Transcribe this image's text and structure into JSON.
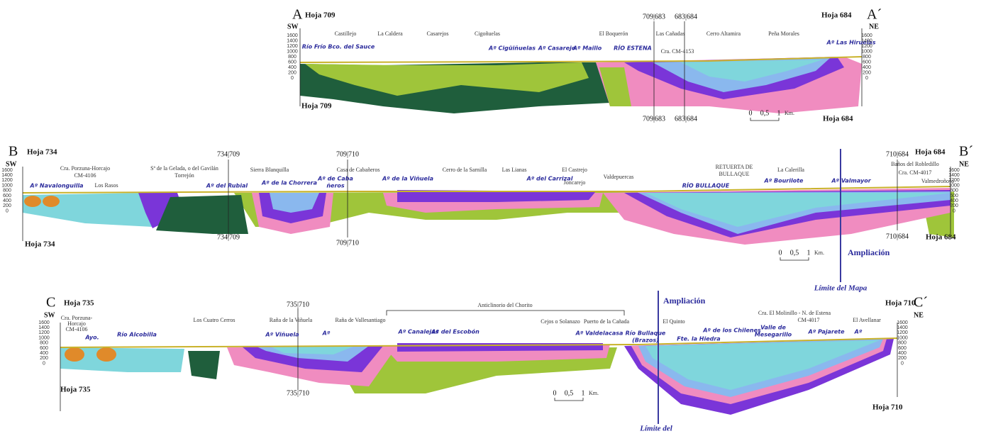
{
  "sections": [
    {
      "start": "A",
      "end": "A´",
      "start_dir": "SW",
      "end_dir": "NE",
      "top_left": "Hoja 709",
      "top_right": "Hoja 684",
      "bottom_left": "Hoja 709",
      "bottom_right": "Hoja 684",
      "places": [
        "Castillejo",
        "La Caldera",
        "Casarejos",
        "Cigoñuelas",
        "El Boquerón",
        "Las Cañadas",
        "Cra. CM-4153",
        "Cerro Altamira",
        "Peña Morales"
      ],
      "rivers": [
        "Río Frío Bco. del Sauce",
        "Aº Cigüiñuelas",
        "Aº Casarejo",
        "Aº Maillo",
        "RÍO ESTENA",
        "Aº Las Hiruelas"
      ],
      "sheet_marks": [
        "709|683",
        "683|684"
      ]
    },
    {
      "start": "B",
      "end": "B´",
      "start_dir": "SW",
      "end_dir": "NE",
      "top_left": "Hoja 734",
      "top_right": "Hoja 684",
      "bottom_left": "Hoja 734",
      "bottom_right": "Hoja 684",
      "places": [
        "Cra. Porzuna-Horcajo",
        "CM-4106",
        "Los Rasos",
        "Sª de la Gelada, o del Gavilán",
        "Torrejón",
        "Sierra Blanquilla",
        "Casa de Cabañeros",
        "Cerro de la Sarnilla",
        "Las Lianas",
        "El Castrejo",
        "Joncarejo",
        "Valdepuercas",
        "RETUERTA DE",
        "BULLAQUE",
        "La Calerilla",
        "Baños del Robledillo",
        "Cra. CM-4017",
        "Valmedroñoso"
      ],
      "rivers": [
        "Aº Navalonguilla",
        "Aº del Rubial",
        "Aº de la Chorrera",
        "Aº de Caba",
        "ñeros",
        "Aº de la Viñuela",
        "Aº del Carrizal",
        "RÍO BULLAQUE",
        "Aº Bourilote",
        "Aº Valmayor"
      ],
      "sheet_marks": [
        "734|709",
        "709|710",
        "710|684"
      ]
    },
    {
      "start": "C",
      "end": "C´",
      "start_dir": "SW",
      "end_dir": "NE",
      "top_left": "Hoja 735",
      "top_right": "Hoja 710",
      "bottom_left": "Hoja 735",
      "bottom_right": "Hoja 710",
      "places": [
        "Cra. Porzuna-",
        "Horcajo",
        "CM-4106",
        "Los Cuatro Cerros",
        "Raña de la Viñuela",
        "Raña de Vallesantiago",
        "Anticlinorio del Chorito",
        "Cejos o Solanazo",
        "Puerto de la Cañada",
        "El Quinto",
        "Cra. El Molinillo - N. de Estena",
        "CM-4017",
        "El Avellanar"
      ],
      "rivers": [
        "Ayo.",
        "Río Alcobilla",
        "Aº Viñuela",
        "Aº",
        "Aº Canalejas",
        "Aº del Escobón",
        "Aº Valdelacasa",
        "Río Bullaque",
        "(Brazos)",
        "Fte. la Hiedra",
        "Aº de los Chilenes",
        "Valle de",
        "Mesegarillo",
        "Aº Pajarete",
        "Aº"
      ],
      "sheet_marks": [
        "735|710"
      ]
    }
  ],
  "elevation_ticks": [
    1600,
    1400,
    1200,
    1000,
    800,
    600,
    400,
    200,
    0
  ],
  "scale_bar": [
    "0",
    "0,5",
    "1",
    "Km."
  ],
  "ampliacion": "Ampliación",
  "limite_mapa": "Límite del Mapa",
  "limite_del": "Límite del"
}
